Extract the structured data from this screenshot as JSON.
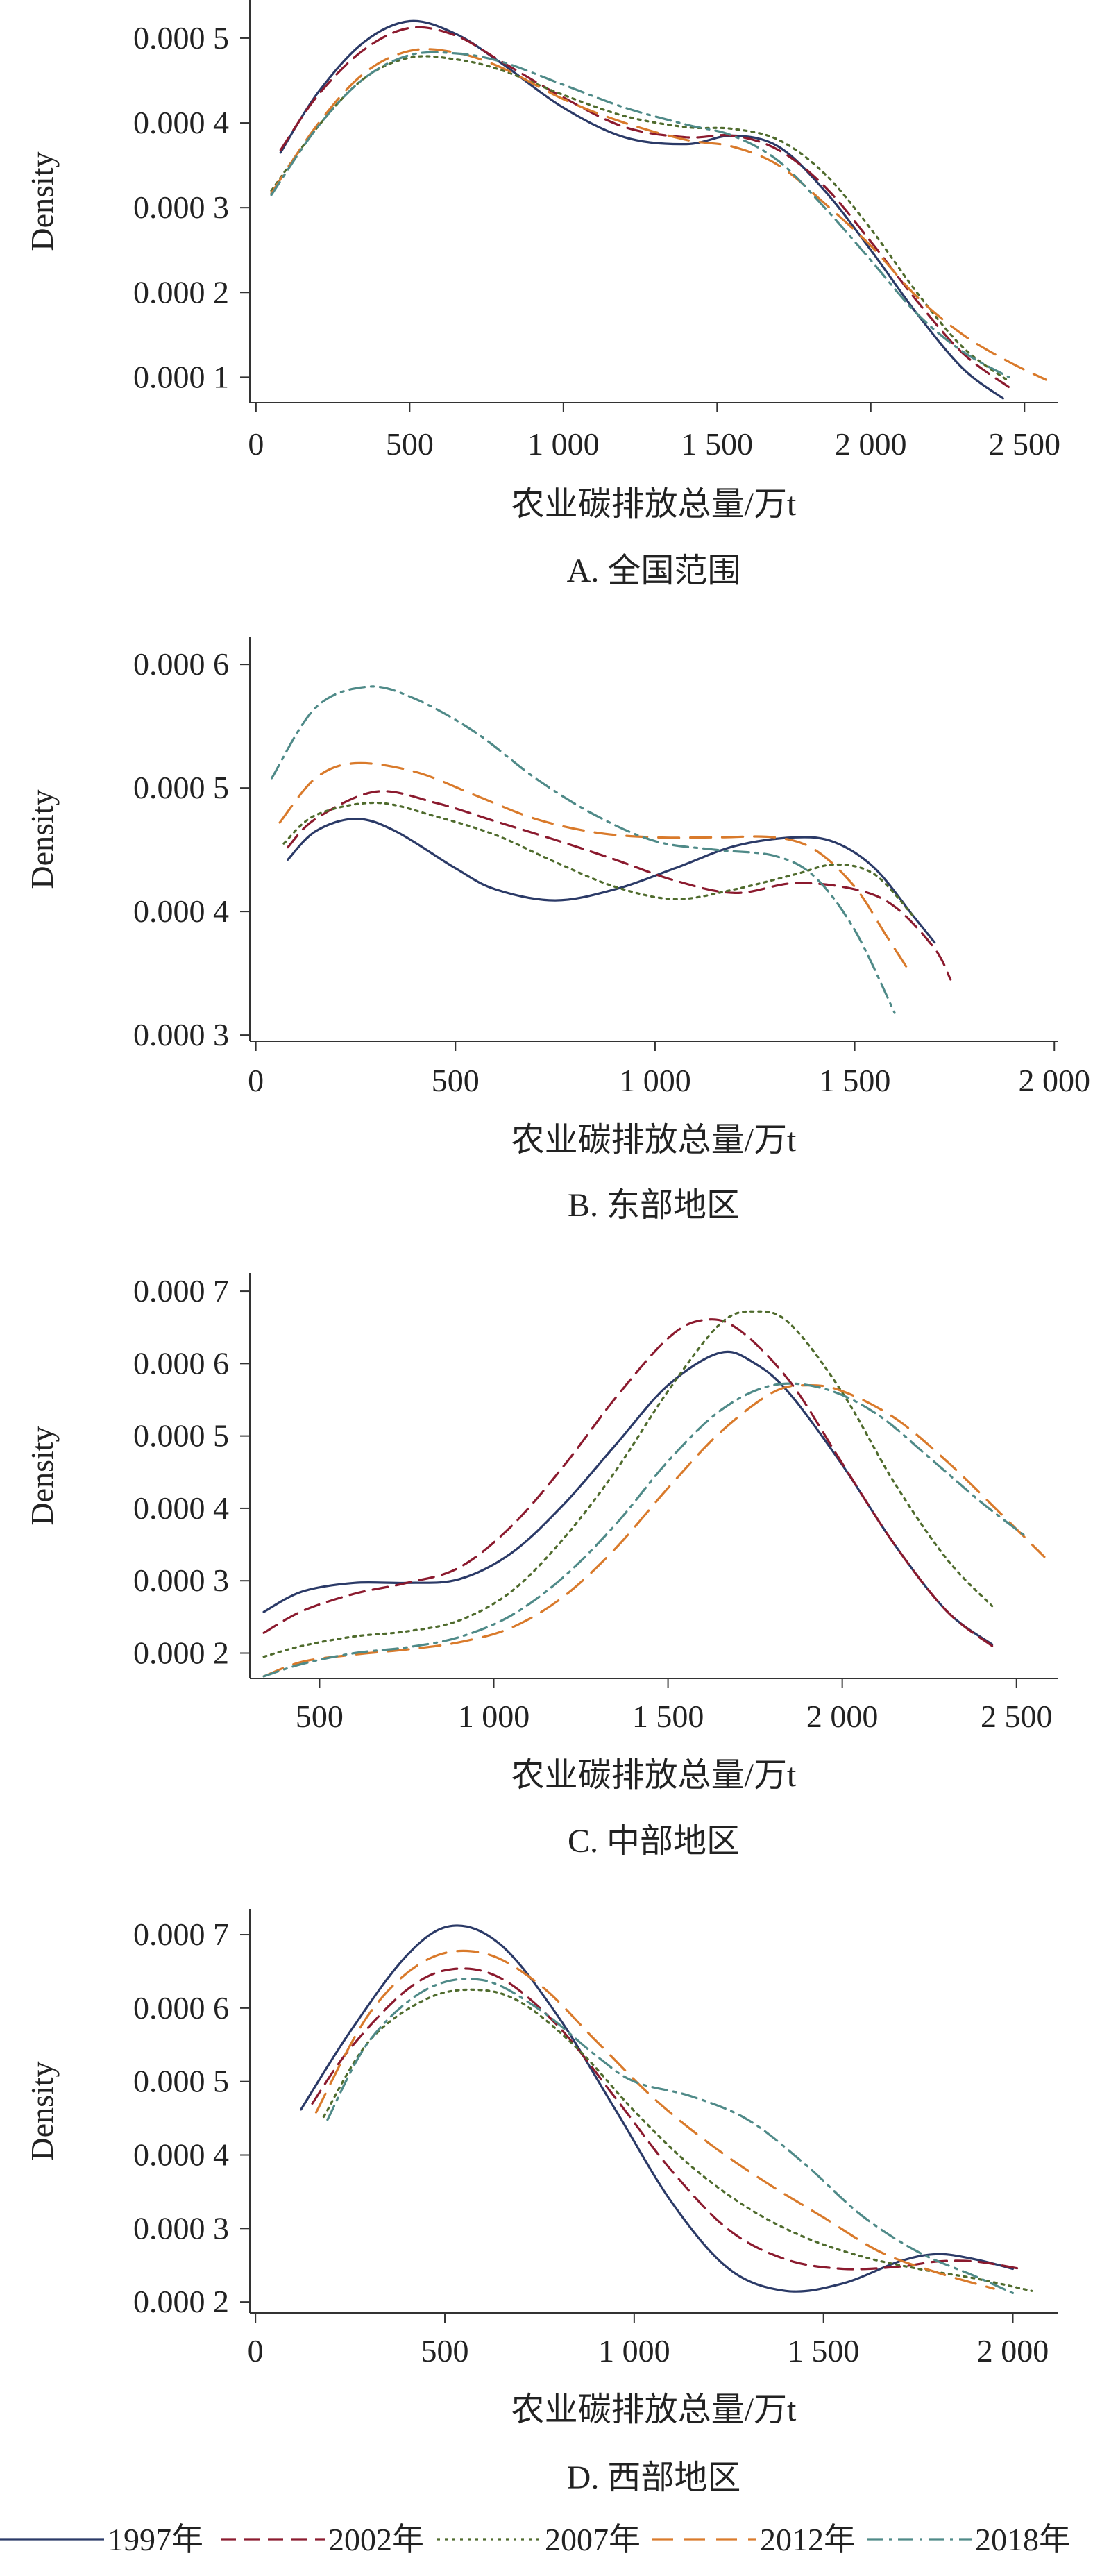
{
  "chart_data": [
    {
      "type": "line",
      "caption": "A. 全国范围",
      "xlabel": "农业碳排放总量/万t",
      "ylabel": "Density",
      "xlim": [
        -20,
        2610
      ],
      "ylim": [
        7e-05,
        0.000545
      ],
      "xticks": [
        {
          "v": 0,
          "label": "0"
        },
        {
          "v": 500,
          "label": "500"
        },
        {
          "v": 1000,
          "label": "1 000"
        },
        {
          "v": 1500,
          "label": "1 500"
        },
        {
          "v": 2000,
          "label": "2 000"
        },
        {
          "v": 2500,
          "label": "2 500"
        }
      ],
      "yticks": [
        {
          "v": 0.0001,
          "label": "0.000 1"
        },
        {
          "v": 0.0002,
          "label": "0.000 2"
        },
        {
          "v": 0.0003,
          "label": "0.000 3"
        },
        {
          "v": 0.0004,
          "label": "0.000 4"
        },
        {
          "v": 0.0005,
          "label": "0.000 5"
        }
      ],
      "series": [
        {
          "name": "1997年",
          "x": [
            80,
            200,
            350,
            500,
            650,
            800,
            1000,
            1200,
            1400,
            1550,
            1700,
            1850,
            2000,
            2150,
            2300,
            2430
          ],
          "y": [
            0.000365,
            0.000435,
            0.000495,
            0.00052,
            0.000505,
            0.00047,
            0.000418,
            0.000383,
            0.000375,
            0.000385,
            0.000372,
            0.00032,
            0.00025,
            0.000175,
            0.00011,
            7.5e-05
          ]
        },
        {
          "name": "2002年",
          "x": [
            80,
            200,
            350,
            500,
            650,
            800,
            1000,
            1200,
            1400,
            1550,
            1700,
            1850,
            2000,
            2150,
            2300,
            2450
          ],
          "y": [
            0.000368,
            0.000432,
            0.000486,
            0.000512,
            0.000503,
            0.000472,
            0.00043,
            0.000395,
            0.000383,
            0.000385,
            0.000368,
            0.000325,
            0.00026,
            0.00019,
            0.000128,
            8.8e-05
          ]
        },
        {
          "name": "2007年",
          "x": [
            50,
            200,
            350,
            500,
            650,
            800,
            1000,
            1200,
            1400,
            1550,
            1700,
            1850,
            2000,
            2150,
            2300,
            2450
          ],
          "y": [
            0.00032,
            0.000395,
            0.000452,
            0.000477,
            0.000475,
            0.000462,
            0.000433,
            0.000408,
            0.000395,
            0.000393,
            0.00038,
            0.00034,
            0.000275,
            0.0002,
            0.000135,
            9.5e-05
          ]
        },
        {
          "name": "2012年",
          "x": [
            50,
            200,
            350,
            500,
            650,
            800,
            1000,
            1200,
            1400,
            1550,
            1700,
            1850,
            2000,
            2150,
            2300,
            2450,
            2570
          ],
          "y": [
            0.000317,
            0.000398,
            0.000458,
            0.000485,
            0.000483,
            0.000465,
            0.000428,
            0.0004,
            0.00038,
            0.000372,
            0.00035,
            0.000305,
            0.000255,
            0.000195,
            0.00015,
            0.000118,
            9.7e-05
          ]
        },
        {
          "name": "2018年",
          "x": [
            50,
            200,
            350,
            500,
            650,
            800,
            1000,
            1200,
            1400,
            1550,
            1700,
            1850,
            2000,
            2150,
            2300,
            2450
          ],
          "y": [
            0.000315,
            0.000395,
            0.000452,
            0.00048,
            0.000482,
            0.000472,
            0.000445,
            0.000418,
            0.000398,
            0.000385,
            0.000355,
            0.0003,
            0.000238,
            0.000175,
            0.00013,
            0.0001
          ]
        }
      ]
    },
    {
      "type": "line",
      "caption": "B. 东部地区",
      "xlabel": "农业碳排放总量/万t",
      "ylabel": "Density",
      "xlim": [
        -15,
        2010
      ],
      "ylim": [
        0.000295,
        0.000622
      ],
      "xticks": [
        {
          "v": 0,
          "label": "0"
        },
        {
          "v": 500,
          "label": "500"
        },
        {
          "v": 1000,
          "label": "1 000"
        },
        {
          "v": 1500,
          "label": "1 500"
        },
        {
          "v": 2000,
          "label": "2 000"
        }
      ],
      "yticks": [
        {
          "v": 0.0003,
          "label": "0.000 3"
        },
        {
          "v": 0.0004,
          "label": "0.000 4"
        },
        {
          "v": 0.0005,
          "label": "0.000 5"
        },
        {
          "v": 0.0006,
          "label": "0.000 6"
        }
      ],
      "series": [
        {
          "name": "1997年",
          "x": [
            80,
            150,
            250,
            350,
            500,
            600,
            750,
            900,
            1050,
            1200,
            1350,
            1450,
            1550,
            1650,
            1700
          ],
          "y": [
            0.000442,
            0.000465,
            0.000475,
            0.000465,
            0.000435,
            0.000418,
            0.000409,
            0.000418,
            0.000435,
            0.000453,
            0.00046,
            0.000456,
            0.000435,
            0.000395,
            0.000375
          ]
        },
        {
          "name": "2002年",
          "x": [
            80,
            150,
            300,
            450,
            600,
            750,
            900,
            1050,
            1200,
            1350,
            1500,
            1600,
            1700,
            1740
          ],
          "y": [
            0.000452,
            0.000475,
            0.000497,
            0.000488,
            0.000473,
            0.000458,
            0.000442,
            0.000425,
            0.000415,
            0.000423,
            0.000418,
            0.000404,
            0.00037,
            0.000345
          ]
        },
        {
          "name": "2007年",
          "x": [
            70,
            150,
            300,
            450,
            600,
            750,
            900,
            1050,
            1200,
            1350,
            1450,
            1550,
            1650
          ],
          "y": [
            0.000455,
            0.000478,
            0.000488,
            0.000477,
            0.000462,
            0.00044,
            0.00042,
            0.00041,
            0.000418,
            0.00043,
            0.000438,
            0.00043,
            0.000395
          ]
        },
        {
          "name": "2012年",
          "x": [
            60,
            150,
            250,
            400,
            550,
            700,
            850,
            1000,
            1150,
            1300,
            1400,
            1500,
            1580,
            1640
          ],
          "y": [
            0.000472,
            0.000508,
            0.00052,
            0.000513,
            0.000494,
            0.000475,
            0.000464,
            0.00046,
            0.00046,
            0.00046,
            0.00045,
            0.00042,
            0.00038,
            0.00035
          ]
        },
        {
          "name": "2018年",
          "x": [
            40,
            150,
            280,
            400,
            550,
            700,
            850,
            1000,
            1150,
            1300,
            1400,
            1500,
            1600
          ],
          "y": [
            0.000508,
            0.000565,
            0.000582,
            0.000572,
            0.000545,
            0.000508,
            0.000478,
            0.000457,
            0.00045,
            0.000445,
            0.000428,
            0.000385,
            0.000318
          ]
        }
      ]
    },
    {
      "type": "line",
      "caption": "C. 中部地区",
      "xlabel": "农业碳排放总量/万t",
      "ylabel": "Density",
      "xlim": [
        300,
        2620
      ],
      "ylim": [
        0.000165,
        0.000725
      ],
      "xticks": [
        {
          "v": 500,
          "label": "500"
        },
        {
          "v": 1000,
          "label": "1 000"
        },
        {
          "v": 1500,
          "label": "1 500"
        },
        {
          "v": 2000,
          "label": "2 000"
        },
        {
          "v": 2500,
          "label": "2 500"
        }
      ],
      "yticks": [
        {
          "v": 0.0002,
          "label": "0.000 2"
        },
        {
          "v": 0.0003,
          "label": "0.000 3"
        },
        {
          "v": 0.0004,
          "label": "0.000 4"
        },
        {
          "v": 0.0005,
          "label": "0.000 5"
        },
        {
          "v": 0.0006,
          "label": "0.000 6"
        },
        {
          "v": 0.0007,
          "label": "0.000 7"
        }
      ],
      "series": [
        {
          "name": "1997年",
          "x": [
            340,
            450,
            600,
            750,
            900,
            1050,
            1200,
            1350,
            1500,
            1650,
            1750,
            1850,
            2000,
            2150,
            2300,
            2430
          ],
          "y": [
            0.000257,
            0.000285,
            0.000297,
            0.000297,
            0.000302,
            0.000338,
            0.000405,
            0.000488,
            0.00057,
            0.000615,
            0.0006,
            0.000558,
            0.00046,
            0.00035,
            0.000258,
            0.000212
          ]
        },
        {
          "name": "2002年",
          "x": [
            340,
            450,
            600,
            750,
            900,
            1050,
            1200,
            1350,
            1500,
            1600,
            1700,
            1850,
            2000,
            2150,
            2300,
            2430
          ],
          "y": [
            0.000228,
            0.000258,
            0.000282,
            0.000297,
            0.000318,
            0.000375,
            0.000458,
            0.000553,
            0.000635,
            0.00066,
            0.000648,
            0.000575,
            0.000462,
            0.00035,
            0.000258,
            0.00021
          ]
        },
        {
          "name": "2007年",
          "x": [
            340,
            450,
            600,
            750,
            900,
            1050,
            1200,
            1350,
            1500,
            1650,
            1750,
            1850,
            2000,
            2150,
            2300,
            2430
          ],
          "y": [
            0.000195,
            0.00021,
            0.000223,
            0.00023,
            0.000245,
            0.000285,
            0.000358,
            0.000452,
            0.000562,
            0.000655,
            0.000672,
            0.000655,
            0.00056,
            0.000435,
            0.00033,
            0.000265
          ]
        },
        {
          "name": "2012年",
          "x": [
            340,
            450,
            600,
            750,
            900,
            1050,
            1200,
            1350,
            1500,
            1650,
            1800,
            1900,
            2000,
            2150,
            2300,
            2450,
            2580
          ],
          "y": [
            0.000168,
            0.000188,
            0.000198,
            0.000205,
            0.000215,
            0.000235,
            0.000278,
            0.000345,
            0.000428,
            0.000505,
            0.00056,
            0.00057,
            0.000562,
            0.000525,
            0.000465,
            0.000395,
            0.000333
          ]
        },
        {
          "name": "2018年",
          "x": [
            340,
            450,
            600,
            750,
            900,
            1050,
            1200,
            1350,
            1500,
            1650,
            1800,
            1950,
            2100,
            2250,
            2400,
            2530
          ],
          "y": [
            0.000168,
            0.000185,
            0.0002,
            0.000208,
            0.000222,
            0.000252,
            0.000305,
            0.000378,
            0.000465,
            0.000535,
            0.00057,
            0.000565,
            0.00053,
            0.00047,
            0.000408,
            0.00036
          ]
        }
      ]
    },
    {
      "type": "line",
      "caption": "D. 西部地区",
      "xlabel": "农业碳排放总量/万t",
      "ylabel": "Density",
      "xlim": [
        -15,
        2120
      ],
      "ylim": [
        0.000185,
        0.000735
      ],
      "xticks": [
        {
          "v": 0,
          "label": "0"
        },
        {
          "v": 500,
          "label": "500"
        },
        {
          "v": 1000,
          "label": "1 000"
        },
        {
          "v": 1500,
          "label": "1 500"
        },
        {
          "v": 2000,
          "label": "2 000"
        }
      ],
      "yticks": [
        {
          "v": 0.0002,
          "label": "0.000 2"
        },
        {
          "v": 0.0003,
          "label": "0.000 3"
        },
        {
          "v": 0.0004,
          "label": "0.000 4"
        },
        {
          "v": 0.0005,
          "label": "0.000 5"
        },
        {
          "v": 0.0006,
          "label": "0.000 6"
        },
        {
          "v": 0.0007,
          "label": "0.000 7"
        }
      ],
      "series": [
        {
          "name": "1997年",
          "x": [
            120,
            250,
            400,
            520,
            650,
            800,
            950,
            1100,
            1250,
            1400,
            1550,
            1700,
            1800,
            1900,
            2000
          ],
          "y": [
            0.000462,
            0.000568,
            0.000672,
            0.000712,
            0.000685,
            0.000588,
            0.000462,
            0.000335,
            0.000245,
            0.000215,
            0.000225,
            0.000255,
            0.000265,
            0.000258,
            0.000245
          ]
        },
        {
          "name": "2002年",
          "x": [
            150,
            250,
            400,
            520,
            650,
            800,
            950,
            1100,
            1250,
            1400,
            1550,
            1700,
            1800,
            1900,
            2020
          ],
          "y": [
            0.00047,
            0.000545,
            0.000625,
            0.000653,
            0.00064,
            0.000575,
            0.000478,
            0.000378,
            0.000298,
            0.000258,
            0.000245,
            0.000248,
            0.000255,
            0.000255,
            0.000245
          ]
        },
        {
          "name": "2007年",
          "x": [
            180,
            300,
            450,
            580,
            700,
            850,
            1000,
            1150,
            1300,
            1450,
            1600,
            1750,
            1900,
            2050
          ],
          "y": [
            0.000452,
            0.000555,
            0.000612,
            0.000625,
            0.000608,
            0.000545,
            0.00046,
            0.000385,
            0.000328,
            0.000288,
            0.000262,
            0.000245,
            0.000232,
            0.000215
          ]
        },
        {
          "name": "2012年",
          "x": [
            160,
            300,
            450,
            600,
            750,
            900,
            1050,
            1200,
            1350,
            1500,
            1650,
            1800,
            1950
          ],
          "y": [
            0.000458,
            0.000592,
            0.000665,
            0.000675,
            0.000632,
            0.000555,
            0.000478,
            0.000415,
            0.000362,
            0.000315,
            0.000268,
            0.00024,
            0.000218
          ]
        },
        {
          "name": "2018年",
          "x": [
            190,
            300,
            450,
            600,
            750,
            900,
            1000,
            1150,
            1300,
            1450,
            1600,
            1750,
            1900,
            2000
          ],
          "y": [
            0.000448,
            0.000555,
            0.000625,
            0.000638,
            0.000598,
            0.000535,
            0.0005,
            0.00048,
            0.000448,
            0.000388,
            0.000318,
            0.000268,
            0.000235,
            0.000212
          ]
        }
      ]
    }
  ],
  "legend": {
    "position": "bottom",
    "items": [
      {
        "label": "1997年",
        "color": "#2b3a67",
        "dash": "solid"
      },
      {
        "label": "2002年",
        "color": "#8b1a2e",
        "dash": "dashed"
      },
      {
        "label": "2007年",
        "color": "#4f6b2d",
        "dash": "dotted"
      },
      {
        "label": "2012年",
        "color": "#d97a2b",
        "dash": "long-dashed"
      },
      {
        "label": "2018年",
        "color": "#4f8a88",
        "dash": "dash-dot"
      }
    ]
  }
}
